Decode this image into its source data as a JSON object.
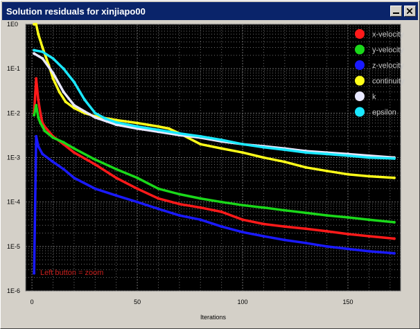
{
  "window": {
    "title": "Solution residuals for xinjiapo00"
  },
  "hint": {
    "text": "Left button = zoom"
  },
  "colors": {
    "plot_background": "#000000",
    "grid": "#6f6f6f",
    "titlebar": "#0a246a"
  },
  "chart_data": {
    "type": "line",
    "title": "",
    "xlabel": "Iterations",
    "ylabel": "",
    "xlim": [
      -3,
      175
    ],
    "ylim": [
      1e-06,
      1
    ],
    "yscale": "log",
    "grid": true,
    "legend_position": "top-right",
    "x_ticks": [
      "0",
      "50",
      "100",
      "150"
    ],
    "y_ticks": [
      "1E0",
      "1E-1",
      "1E-2",
      "1E-3",
      "1E-4",
      "1E-5",
      "1E-6"
    ],
    "series": [
      {
        "name": "x-velocity",
        "color": "#ff1a1a",
        "x": [
          1,
          2,
          3,
          4,
          5,
          6,
          10,
          15,
          20,
          30,
          40,
          50,
          60,
          70,
          80,
          90,
          100,
          110,
          120,
          130,
          140,
          150,
          160,
          172
        ],
        "y": [
          0.01,
          0.06,
          0.02,
          0.01,
          0.006,
          0.005,
          0.003,
          0.002,
          0.0013,
          0.0007,
          0.00035,
          0.0002,
          0.00012,
          9e-05,
          7.5e-05,
          6e-05,
          4e-05,
          3.2e-05,
          2.8e-05,
          2.5e-05,
          2.2e-05,
          1.9e-05,
          1.7e-05,
          1.5e-05
        ]
      },
      {
        "name": "y-velocity",
        "color": "#1ad81a",
        "x": [
          1,
          2,
          3,
          4,
          5,
          6,
          10,
          15,
          20,
          30,
          40,
          50,
          60,
          70,
          80,
          90,
          100,
          110,
          120,
          130,
          140,
          150,
          160,
          172
        ],
        "y": [
          0.009,
          0.015,
          0.008,
          0.006,
          0.005,
          0.004,
          0.0028,
          0.0022,
          0.0016,
          0.0009,
          0.00055,
          0.00035,
          0.0002,
          0.00015,
          0.00012,
          0.0001,
          8.5e-05,
          7.5e-05,
          6.5e-05,
          5.7e-05,
          5e-05,
          4.5e-05,
          4e-05,
          3.5e-05
        ]
      },
      {
        "name": "z-velocity",
        "color": "#1a1aff",
        "x": [
          1,
          2,
          3,
          5,
          10,
          15,
          20,
          30,
          40,
          50,
          60,
          70,
          80,
          90,
          100,
          110,
          120,
          130,
          140,
          150,
          160,
          172
        ],
        "y": [
          2.5e-06,
          0.003,
          0.0018,
          0.0012,
          0.0008,
          0.00055,
          0.00035,
          0.0002,
          0.00014,
          0.0001,
          7e-05,
          5e-05,
          4e-05,
          2.8e-05,
          2.1e-05,
          1.7e-05,
          1.4e-05,
          1.2e-05,
          1e-05,
          8.8e-06,
          7.8e-06,
          7e-06
        ]
      },
      {
        "name": "continuity",
        "color": "#ffff1a",
        "x": [
          1,
          2,
          3,
          5,
          8,
          10,
          13,
          16,
          20,
          25,
          30,
          40,
          50,
          60,
          65,
          70,
          80,
          90,
          100,
          110,
          120,
          130,
          140,
          150,
          160,
          172
        ],
        "y": [
          1.0,
          1.0,
          0.6,
          0.3,
          0.12,
          0.06,
          0.03,
          0.018,
          0.013,
          0.01,
          0.0085,
          0.007,
          0.006,
          0.005,
          0.0045,
          0.0035,
          0.002,
          0.0016,
          0.0013,
          0.001,
          0.0008,
          0.0006,
          0.0005,
          0.00042,
          0.00038,
          0.00035
        ]
      },
      {
        "name": "k",
        "color": "#e8e8ff",
        "x": [
          1,
          5,
          10,
          15,
          20,
          30,
          40,
          50,
          60,
          70,
          80,
          90,
          100,
          110,
          120,
          130,
          140,
          150,
          160,
          172
        ],
        "y": [
          0.22,
          0.17,
          0.08,
          0.03,
          0.015,
          0.008,
          0.0055,
          0.0045,
          0.0038,
          0.0032,
          0.0028,
          0.0023,
          0.002,
          0.0018,
          0.0016,
          0.0014,
          0.0013,
          0.0012,
          0.0011,
          0.001
        ]
      },
      {
        "name": "epsilon",
        "color": "#1ae8ff",
        "x": [
          1,
          5,
          10,
          15,
          20,
          25,
          30,
          35,
          40,
          50,
          60,
          70,
          80,
          90,
          100,
          110,
          120,
          130,
          140,
          150,
          160,
          172
        ],
        "y": [
          0.26,
          0.24,
          0.17,
          0.1,
          0.05,
          0.02,
          0.01,
          0.0075,
          0.0062,
          0.005,
          0.0042,
          0.0035,
          0.003,
          0.0025,
          0.002,
          0.0017,
          0.0015,
          0.0013,
          0.0012,
          0.0011,
          0.001,
          0.00095
        ]
      }
    ]
  }
}
